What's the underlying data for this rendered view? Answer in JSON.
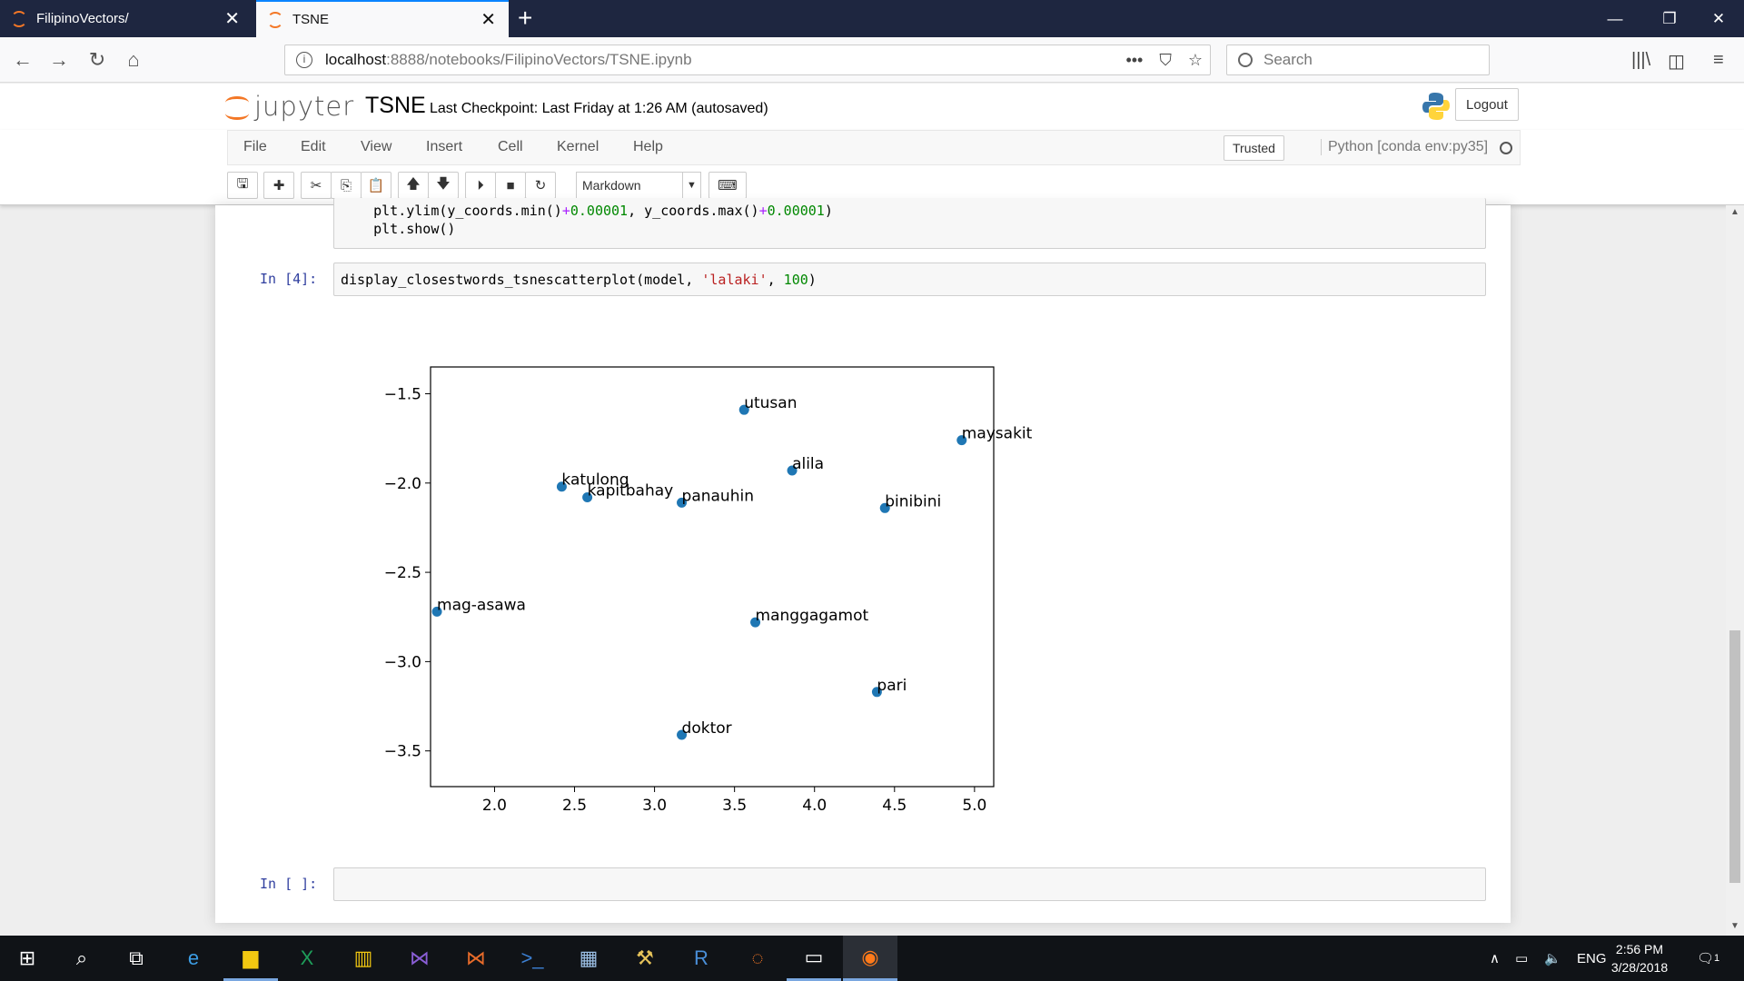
{
  "browser": {
    "tabs": [
      {
        "title": "FilipinoVectors/",
        "active": false
      },
      {
        "title": "TSNE",
        "active": true
      }
    ],
    "url_host": "localhost",
    "url_path": ":8888/notebooks/FilipinoVectors/TSNE.ipynb",
    "search_placeholder": "Search"
  },
  "jupyter": {
    "logo_text": "jupyter",
    "notebook_title": "TSNE",
    "checkpoint": "Last Checkpoint: Last Friday at 1:26 AM (autosaved)",
    "logout_label": "Logout",
    "menu": [
      "File",
      "Edit",
      "View",
      "Insert",
      "Cell",
      "Kernel",
      "Help"
    ],
    "trusted_label": "Trusted",
    "kernel_name": "Python [conda env:py35]",
    "cell_type": "Markdown"
  },
  "cells": {
    "prev_line1": "plt.ylim(y_coords.min()+0.00001, y_coords.max()+0.00001)",
    "prev_line2": "plt.show()",
    "cell4_prompt": "In [4]:",
    "cell4_func": "display_closestwords_tsnescatterplot(model, ",
    "cell4_str": "'lalaki'",
    "cell4_sep": ", ",
    "cell4_num": "100",
    "cell4_close": ")",
    "empty_prompt": "In [ ]:"
  },
  "chart_data": {
    "type": "scatter",
    "xlim": [
      1.6,
      5.12
    ],
    "ylim": [
      -3.7,
      -1.35
    ],
    "xticks": [
      2.0,
      2.5,
      3.0,
      3.5,
      4.0,
      4.5,
      5.0
    ],
    "xtick_labels": [
      "2.0",
      "2.5",
      "3.0",
      "3.5",
      "4.0",
      "4.5",
      "5.0"
    ],
    "yticks": [
      -1.5,
      -2.0,
      -2.5,
      -3.0,
      -3.5
    ],
    "ytick_labels": [
      "−1.5",
      "−2.0",
      "−2.5",
      "−3.0",
      "−3.5"
    ],
    "color": "#1f77b4",
    "points": [
      {
        "label": "utusan",
        "x": 3.56,
        "y": -1.59
      },
      {
        "label": "maysakit",
        "x": 4.92,
        "y": -1.76
      },
      {
        "label": "alila",
        "x": 3.86,
        "y": -1.93
      },
      {
        "label": "katulong",
        "x": 2.42,
        "y": -2.02
      },
      {
        "label": "kapitbahay",
        "x": 2.58,
        "y": -2.08
      },
      {
        "label": "panauhin",
        "x": 3.17,
        "y": -2.11
      },
      {
        "label": "binibini",
        "x": 4.44,
        "y": -2.14
      },
      {
        "label": "mag-asawa",
        "x": 1.64,
        "y": -2.72
      },
      {
        "label": "manggagamot",
        "x": 3.63,
        "y": -2.78
      },
      {
        "label": "pari",
        "x": 4.39,
        "y": -3.17
      },
      {
        "label": "doktor",
        "x": 3.17,
        "y": -3.41
      }
    ]
  },
  "taskbar": {
    "language": "ENG",
    "time": "2:56 PM",
    "date": "3/28/2018",
    "notification_count": "1"
  }
}
